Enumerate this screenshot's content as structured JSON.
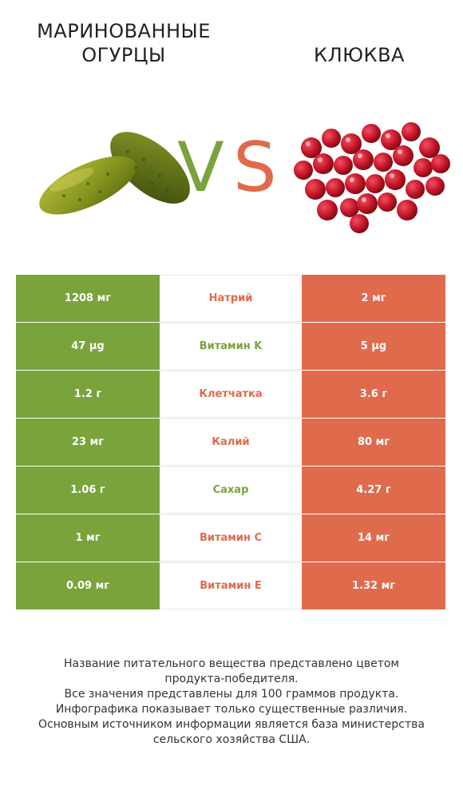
{
  "header": {
    "left_title_line1": "МАРИНОВАННЫЕ",
    "left_title_line2": "ОГУРЦЫ",
    "right_title": "КЛЮКВА",
    "vs_v": "V",
    "vs_s": "S"
  },
  "colors": {
    "left_winner": "#7aa33b",
    "right_winner": "#e06a4c"
  },
  "rows": [
    {
      "left": "1208 мг",
      "nutrient": "Натрий",
      "right": "2 мг",
      "winner": "right"
    },
    {
      "left": "47 µg",
      "nutrient": "Витамин K",
      "right": "5 µg",
      "winner": "left"
    },
    {
      "left": "1.2 г",
      "nutrient": "Клетчатка",
      "right": "3.6 г",
      "winner": "right"
    },
    {
      "left": "23 мг",
      "nutrient": "Калий",
      "right": "80 мг",
      "winner": "right"
    },
    {
      "left": "1.06 г",
      "nutrient": "Сахар",
      "right": "4.27 г",
      "winner": "left"
    },
    {
      "left": "1 мг",
      "nutrient": "Витамин C",
      "right": "14 мг",
      "winner": "right"
    },
    {
      "left": "0.09 мг",
      "nutrient": "Витамин E",
      "right": "1.32 мг",
      "winner": "right"
    }
  ],
  "footnote": {
    "line1": "Название питательного вещества представлено цветом",
    "line2": "продукта-победителя.",
    "line3": "Все значения представлены для 100 граммов продукта.",
    "line4": "Инфографика показывает только существенные различия.",
    "line5": "Основным источником информации является база министерства",
    "line6": "сельского хозяйства США."
  }
}
